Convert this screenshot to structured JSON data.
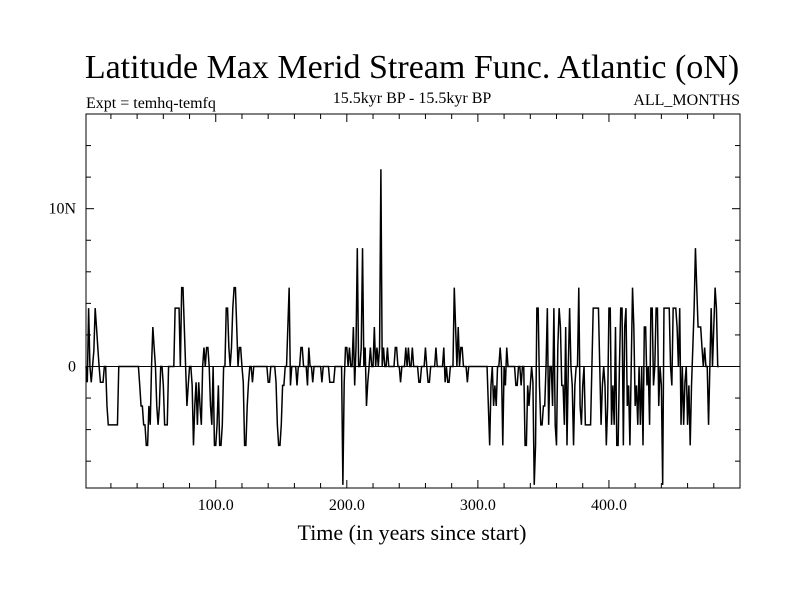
{
  "chart_data": {
    "type": "line",
    "title": "Latitude Max Merid Stream Func. Atlantic (oN)",
    "subtitle_left": "Expt = temhq-temfq",
    "subtitle_center": "15.5kyr BP - 15.5kyr BP",
    "subtitle_right": "ALL_MONTHS",
    "xlabel": "Time (in years since start)",
    "ylabel": "",
    "xlim": [
      1,
      500
    ],
    "ylim": [
      -7.7,
      16
    ],
    "x_ticks": [
      {
        "value": 100,
        "label": "100.0"
      },
      {
        "value": 200,
        "label": "200.0"
      },
      {
        "value": 300,
        "label": "300.0"
      },
      {
        "value": 400,
        "label": "400.0"
      }
    ],
    "y_ticks": [
      {
        "value": 0,
        "label": "0"
      },
      {
        "value": 10,
        "label": "10N"
      }
    ],
    "x_minor_step": 20,
    "y_minor_step": 2,
    "line_color": "#000000",
    "series": [
      {
        "name": "temhq-temfq",
        "x_start": 1,
        "x_step": 1,
        "values": [
          0,
          -1,
          3.7,
          0,
          -1,
          0,
          1,
          3.7,
          2.5,
          1.2,
          0,
          -1,
          -1,
          -1,
          0,
          0,
          -2.5,
          -3.7,
          -3.7,
          -3.7,
          -3.7,
          -3.7,
          -3.7,
          -3.7,
          -3.7,
          0,
          0,
          0,
          0,
          0,
          0,
          0,
          0,
          0,
          0,
          0,
          0,
          0,
          0,
          0,
          0,
          -1.2,
          -2.5,
          -2.5,
          -3.7,
          -3.7,
          -5,
          -5,
          -2.5,
          -3.7,
          0,
          2.5,
          1.2,
          0,
          -2.5,
          -3.7,
          -2.5,
          0,
          0,
          -1.2,
          -3.7,
          -3.7,
          -3.7,
          0,
          0,
          0,
          0,
          0,
          3.7,
          3.7,
          3.7,
          3.7,
          0,
          5,
          5,
          2.5,
          0,
          -2.5,
          -1.2,
          0,
          0,
          -1.2,
          -5,
          -2.5,
          -1,
          -3.7,
          -1,
          -2.5,
          -3.7,
          0,
          1.2,
          0,
          1.2,
          1.2,
          0,
          -2.5,
          -3.7,
          0,
          -5,
          -5,
          -3.7,
          -1.2,
          -5,
          -5,
          -3.7,
          0,
          0,
          3.7,
          3.7,
          1.2,
          0,
          1.2,
          3.7,
          5,
          5,
          2.5,
          0,
          1.2,
          1.2,
          0,
          -1,
          -5,
          -5,
          -2.5,
          -1,
          0,
          0,
          -1,
          0,
          0,
          0,
          0,
          0,
          0,
          0,
          0,
          0,
          0,
          0,
          -1,
          -1,
          0,
          0,
          0,
          0,
          -1,
          -3.7,
          -5,
          -5,
          -3.7,
          -1.2,
          -1.2,
          0,
          0,
          2.5,
          5,
          -1.2,
          0,
          0,
          0,
          0,
          -1.2,
          0,
          0,
          1.2,
          1.2,
          0,
          0,
          0,
          -1.2,
          1.2,
          0,
          0,
          -1,
          0,
          0,
          0,
          0,
          0,
          0,
          -1,
          0,
          0,
          0,
          0,
          0,
          -1,
          -1,
          -1,
          -1,
          0,
          0,
          0,
          0,
          0,
          0,
          -7.5,
          -1,
          1.2,
          1.2,
          0,
          1.2,
          0,
          0,
          2.5,
          -1.2,
          1.2,
          7.5,
          0,
          0,
          1.2,
          7.5,
          0,
          1.2,
          -2.5,
          -1,
          0,
          1.2,
          0,
          0,
          2.5,
          0,
          1.2,
          0,
          1.2,
          12.5,
          0,
          1.2,
          0,
          0,
          1.2,
          0,
          0,
          0,
          0,
          0,
          1.2,
          1.2,
          0,
          0,
          -1,
          0,
          0,
          0,
          1.2,
          0,
          1.2,
          0,
          0,
          1.2,
          0,
          0,
          0,
          0,
          -1,
          -1,
          0,
          0,
          0,
          1.2,
          0,
          -1,
          -1,
          0,
          0,
          0,
          0,
          1.2,
          0,
          0,
          0,
          0,
          0,
          1.2,
          -1,
          0,
          -1,
          -1,
          0,
          0,
          0,
          5,
          2.5,
          0,
          2.5,
          0,
          1.2,
          1.2,
          0,
          0,
          0,
          -1,
          0,
          0,
          0,
          0,
          0,
          0,
          0,
          0,
          0,
          0,
          0,
          0,
          0,
          0,
          0,
          -2.5,
          -5,
          -1.2,
          0,
          -2.5,
          -1.2,
          -2.5,
          0,
          0,
          1.2,
          0,
          -5,
          0,
          -1.2,
          1.2,
          0,
          0,
          0,
          0,
          0,
          0,
          -1.2,
          -1.2,
          0,
          0,
          -1.2,
          0,
          0,
          -5,
          -5,
          -1.2,
          -2.5,
          -1.2,
          0,
          -1,
          -7.5,
          -5,
          3.7,
          3.7,
          -1.2,
          -3.7,
          -3.7,
          -2.5,
          -2.5,
          0,
          3.7,
          -3.7,
          0,
          0,
          -2.5,
          3.7,
          -3.7,
          -5,
          1.2,
          3.7,
          2.5,
          -1.2,
          -1.2,
          -3.7,
          2.5,
          -5,
          0,
          3.7,
          0,
          -1.2,
          -5,
          -1.2,
          0,
          0,
          5,
          -2.5,
          -3.7,
          -1.2,
          0,
          -3.7,
          -3.7,
          -3.7,
          -3.7,
          -3.7,
          0,
          3.7,
          3.7,
          3.7,
          3.7,
          3.7,
          0,
          -3.7,
          -1.2,
          0,
          -1.2,
          -5,
          -2.5,
          3.7,
          3.7,
          -3.7,
          -1.2,
          -3.7,
          2.5,
          -5,
          -5,
          0,
          3.7,
          3.7,
          -5,
          2.5,
          3.7,
          -2.5,
          -1.2,
          -5,
          0,
          5,
          2.5,
          -2.5,
          -1.2,
          -3.7,
          0,
          -3.7,
          0,
          -5,
          2.5,
          2.5,
          -1.2,
          0,
          -3.7,
          3.7,
          3.7,
          -1.2,
          0,
          3.7,
          3.7,
          -2.5,
          0,
          -1.2,
          -7.5,
          3.7,
          3.7,
          3.7,
          3.7,
          3.7,
          0,
          -1.2,
          3.7,
          3.7,
          3.7,
          2.5,
          0,
          3.7,
          -3.7,
          0,
          -3.7,
          -1,
          0,
          -3.7,
          -1.2,
          -5,
          -1.2,
          1.2,
          3.7,
          7.5,
          5,
          2.5,
          2.5,
          2.5,
          1.2,
          0,
          1.2,
          0,
          0,
          -3.7,
          0,
          3.7,
          0,
          2.5,
          5,
          3.7,
          0,
          0
        ]
      }
    ]
  }
}
